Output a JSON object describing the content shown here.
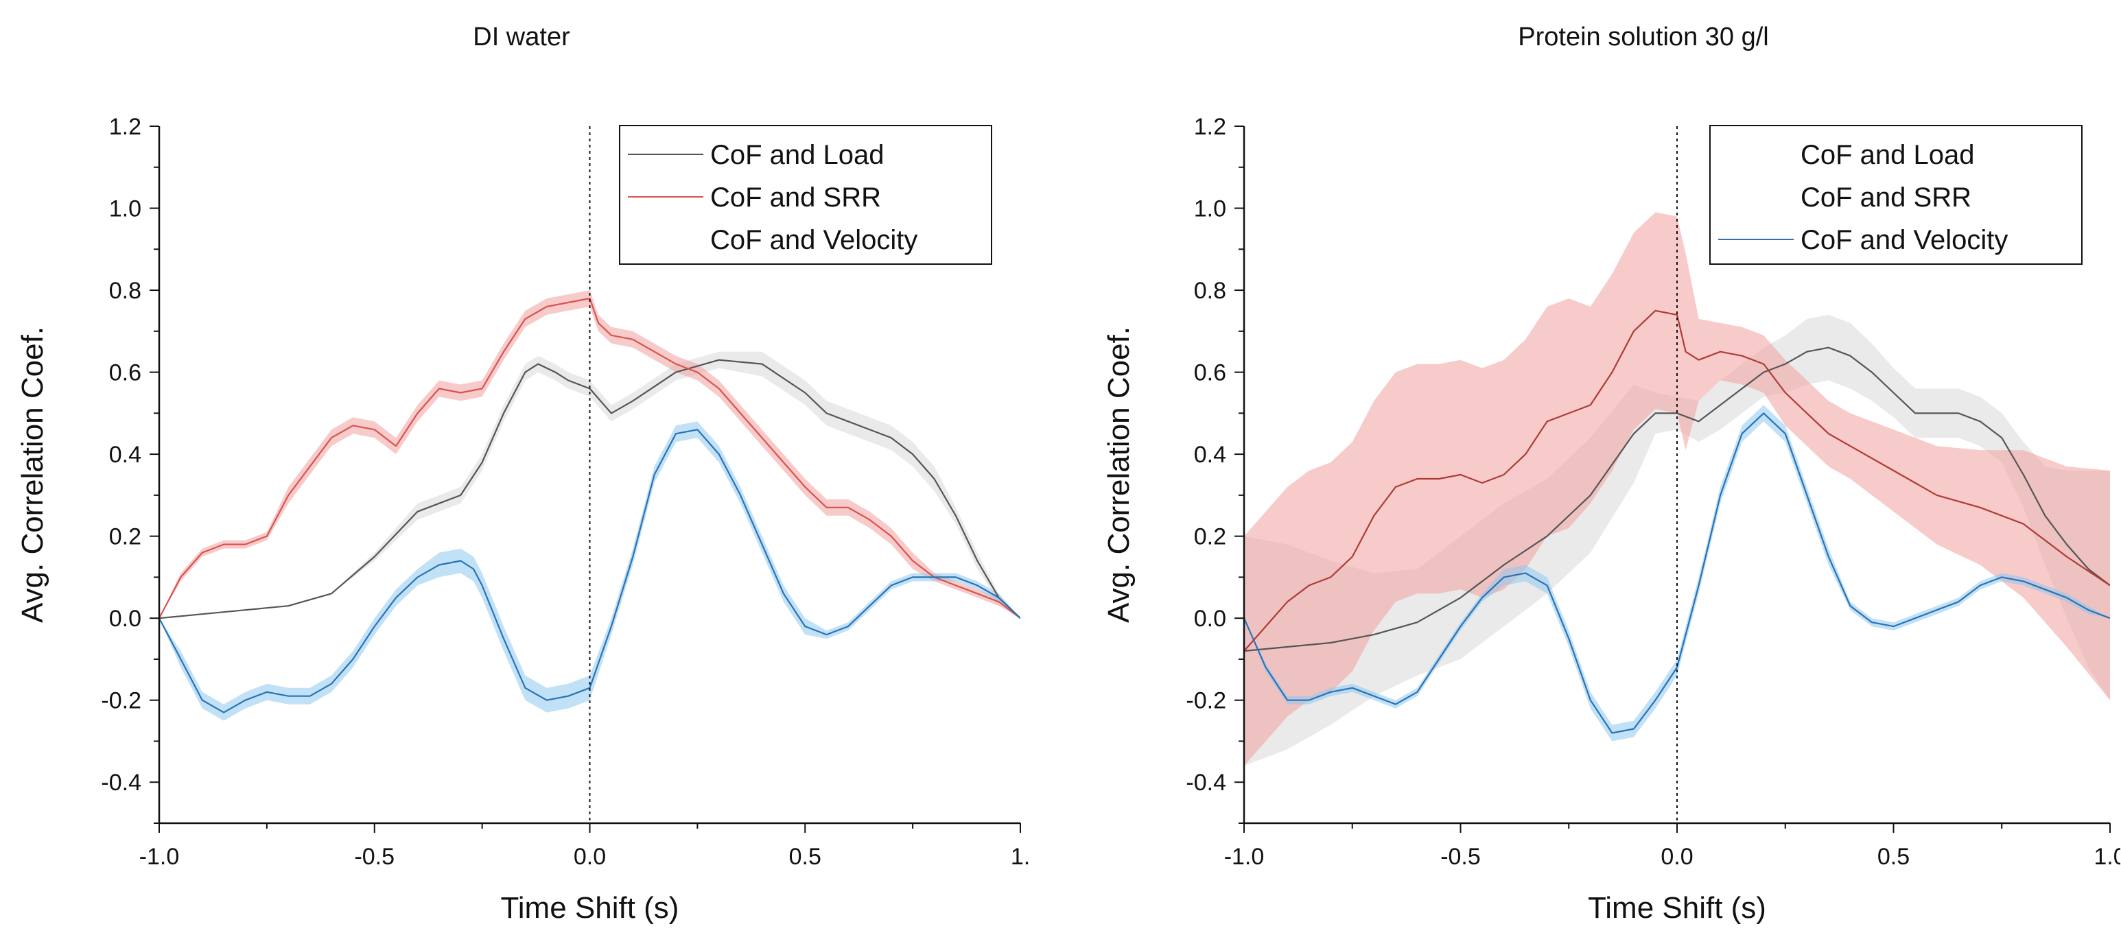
{
  "chart_data": [
    {
      "type": "line",
      "title": "DI water",
      "xlabel": "Time Shift (s)",
      "ylabel": "Avg. Correlation Coef.",
      "xlim": [
        -1.0,
        1.0
      ],
      "ylim": [
        -0.5,
        1.2
      ],
      "xticks": [
        -1.0,
        -0.5,
        0.0,
        0.5,
        1.0
      ],
      "xtick_labels": [
        "-1.0",
        "-0.5",
        "0.0",
        "0.5",
        "1."
      ],
      "yticks": [
        -0.4,
        -0.2,
        0.0,
        0.2,
        0.4,
        0.6,
        0.8,
        1.0,
        1.2
      ],
      "ytick_labels": [
        "-0.4",
        "-0.2",
        "0.0",
        "0.2",
        "0.4",
        "0.6",
        "0.8",
        "1.0",
        "1.2"
      ],
      "vline_x": 0.0,
      "legend_position": "top-right",
      "series": [
        {
          "name": "CoF and Load",
          "color": "#555555",
          "band_color": "#d8d8d8",
          "show_legend_line": true,
          "x": [
            -1.0,
            -0.9,
            -0.8,
            -0.7,
            -0.6,
            -0.5,
            -0.4,
            -0.35,
            -0.3,
            -0.25,
            -0.2,
            -0.15,
            -0.12,
            -0.08,
            -0.05,
            0.0,
            0.05,
            0.1,
            0.2,
            0.3,
            0.4,
            0.5,
            0.55,
            0.6,
            0.7,
            0.75,
            0.8,
            0.85,
            0.9,
            0.95,
            1.0
          ],
          "y": [
            0.0,
            0.01,
            0.02,
            0.03,
            0.06,
            0.15,
            0.26,
            0.28,
            0.3,
            0.38,
            0.5,
            0.6,
            0.62,
            0.6,
            0.58,
            0.56,
            0.5,
            0.53,
            0.6,
            0.63,
            0.62,
            0.55,
            0.5,
            0.48,
            0.44,
            0.4,
            0.34,
            0.25,
            0.14,
            0.05,
            0.0
          ],
          "band": [
            0.0,
            0.0,
            0.0,
            0.0,
            0.0,
            0.01,
            0.02,
            0.02,
            0.02,
            0.02,
            0.02,
            0.02,
            0.02,
            0.02,
            0.02,
            0.02,
            0.02,
            0.02,
            0.02,
            0.02,
            0.03,
            0.03,
            0.03,
            0.03,
            0.03,
            0.03,
            0.03,
            0.02,
            0.02,
            0.01,
            0.0
          ]
        },
        {
          "name": "CoF and SRR",
          "color": "#d9534f",
          "band_color": "#f2a0a0",
          "show_legend_line": true,
          "x": [
            -1.0,
            -0.95,
            -0.9,
            -0.85,
            -0.8,
            -0.75,
            -0.7,
            -0.6,
            -0.55,
            -0.5,
            -0.45,
            -0.4,
            -0.35,
            -0.3,
            -0.25,
            -0.2,
            -0.15,
            -0.1,
            -0.05,
            0.0,
            0.02,
            0.05,
            0.1,
            0.15,
            0.2,
            0.25,
            0.3,
            0.35,
            0.4,
            0.45,
            0.5,
            0.55,
            0.6,
            0.65,
            0.7,
            0.75,
            0.8,
            0.85,
            0.9,
            0.95,
            1.0
          ],
          "y": [
            0.0,
            0.1,
            0.16,
            0.18,
            0.18,
            0.2,
            0.3,
            0.44,
            0.47,
            0.46,
            0.42,
            0.5,
            0.56,
            0.55,
            0.56,
            0.65,
            0.73,
            0.76,
            0.77,
            0.78,
            0.72,
            0.69,
            0.68,
            0.65,
            0.62,
            0.6,
            0.56,
            0.5,
            0.44,
            0.38,
            0.32,
            0.27,
            0.27,
            0.24,
            0.2,
            0.14,
            0.1,
            0.08,
            0.06,
            0.04,
            0.0
          ],
          "band": [
            0.0,
            0.01,
            0.01,
            0.01,
            0.01,
            0.01,
            0.02,
            0.02,
            0.02,
            0.02,
            0.02,
            0.02,
            0.02,
            0.02,
            0.02,
            0.02,
            0.02,
            0.02,
            0.02,
            0.02,
            0.02,
            0.02,
            0.02,
            0.02,
            0.02,
            0.02,
            0.02,
            0.02,
            0.02,
            0.02,
            0.02,
            0.02,
            0.02,
            0.02,
            0.02,
            0.02,
            0.01,
            0.01,
            0.01,
            0.01,
            0.0
          ]
        },
        {
          "name": "CoF and Velocity",
          "color": "#2a72b5",
          "band_color": "#8ec9ee",
          "show_legend_line": false,
          "x": [
            -1.0,
            -0.95,
            -0.9,
            -0.85,
            -0.8,
            -0.75,
            -0.7,
            -0.65,
            -0.6,
            -0.55,
            -0.5,
            -0.45,
            -0.4,
            -0.35,
            -0.3,
            -0.27,
            -0.25,
            -0.2,
            -0.15,
            -0.1,
            -0.05,
            0.0,
            0.05,
            0.1,
            0.15,
            0.2,
            0.25,
            0.3,
            0.35,
            0.4,
            0.45,
            0.5,
            0.55,
            0.6,
            0.65,
            0.7,
            0.75,
            0.8,
            0.85,
            0.9,
            0.95,
            1.0
          ],
          "y": [
            0.0,
            -0.1,
            -0.2,
            -0.23,
            -0.2,
            -0.18,
            -0.19,
            -0.19,
            -0.16,
            -0.1,
            -0.02,
            0.05,
            0.1,
            0.13,
            0.14,
            0.12,
            0.08,
            -0.05,
            -0.17,
            -0.2,
            -0.19,
            -0.17,
            -0.02,
            0.15,
            0.35,
            0.45,
            0.46,
            0.4,
            0.3,
            0.18,
            0.06,
            -0.02,
            -0.04,
            -0.02,
            0.03,
            0.08,
            0.1,
            0.1,
            0.1,
            0.08,
            0.05,
            0.0
          ],
          "band": [
            0.0,
            0.02,
            0.02,
            0.02,
            0.02,
            0.02,
            0.02,
            0.02,
            0.02,
            0.02,
            0.02,
            0.02,
            0.02,
            0.03,
            0.03,
            0.03,
            0.03,
            0.03,
            0.03,
            0.03,
            0.03,
            0.03,
            0.02,
            0.02,
            0.02,
            0.02,
            0.02,
            0.02,
            0.02,
            0.02,
            0.02,
            0.02,
            0.01,
            0.01,
            0.01,
            0.01,
            0.01,
            0.01,
            0.01,
            0.01,
            0.01,
            0.0
          ]
        }
      ]
    },
    {
      "type": "line",
      "title": "Protein solution 30 g/l",
      "xlabel": "Time Shift (s)",
      "ylabel": "Avg. Correlation Coef.",
      "xlim": [
        -1.0,
        1.0
      ],
      "ylim": [
        -0.5,
        1.2
      ],
      "xticks": [
        -1.0,
        -0.5,
        0.0,
        0.5,
        1.0
      ],
      "xtick_labels": [
        "-1.0",
        "-0.5",
        "0.0",
        "0.5",
        "1.0"
      ],
      "yticks": [
        -0.4,
        -0.2,
        0.0,
        0.2,
        0.4,
        0.6,
        0.8,
        1.0,
        1.2
      ],
      "ytick_labels": [
        "-0.4",
        "-0.2",
        "0.0",
        "0.2",
        "0.4",
        "0.6",
        "0.8",
        "1.0",
        "1.2"
      ],
      "vline_x": 0.0,
      "legend_position": "top-right",
      "series": [
        {
          "name": "CoF and Load",
          "color": "#555555",
          "band_color": "#d8d8d8",
          "show_legend_line": false,
          "x": [
            -1.0,
            -0.9,
            -0.8,
            -0.7,
            -0.6,
            -0.5,
            -0.4,
            -0.3,
            -0.2,
            -0.1,
            -0.05,
            0.0,
            0.05,
            0.1,
            0.15,
            0.2,
            0.25,
            0.3,
            0.35,
            0.4,
            0.45,
            0.5,
            0.55,
            0.6,
            0.65,
            0.7,
            0.75,
            0.8,
            0.85,
            0.9,
            0.95,
            1.0
          ],
          "y": [
            -0.08,
            -0.07,
            -0.06,
            -0.04,
            -0.01,
            0.05,
            0.13,
            0.2,
            0.3,
            0.45,
            0.5,
            0.5,
            0.48,
            0.52,
            0.56,
            0.6,
            0.62,
            0.65,
            0.66,
            0.64,
            0.6,
            0.55,
            0.5,
            0.5,
            0.5,
            0.48,
            0.44,
            0.35,
            0.25,
            0.18,
            0.12,
            0.08
          ],
          "band": [
            0.28,
            0.25,
            0.2,
            0.15,
            0.13,
            0.15,
            0.15,
            0.14,
            0.14,
            0.12,
            0.05,
            0.04,
            0.05,
            0.06,
            0.06,
            0.06,
            0.07,
            0.08,
            0.08,
            0.08,
            0.07,
            0.06,
            0.06,
            0.06,
            0.06,
            0.06,
            0.06,
            0.08,
            0.12,
            0.18,
            0.24,
            0.28
          ]
        },
        {
          "name": "CoF and SRR",
          "color": "#b03a35",
          "band_color": "#f2a0a0",
          "show_legend_line": false,
          "x": [
            -1.0,
            -0.95,
            -0.9,
            -0.85,
            -0.8,
            -0.75,
            -0.7,
            -0.65,
            -0.6,
            -0.55,
            -0.5,
            -0.45,
            -0.4,
            -0.35,
            -0.3,
            -0.25,
            -0.2,
            -0.15,
            -0.1,
            -0.05,
            0.0,
            0.02,
            0.05,
            0.1,
            0.15,
            0.2,
            0.25,
            0.3,
            0.35,
            0.4,
            0.5,
            0.6,
            0.7,
            0.8,
            0.9,
            1.0
          ],
          "y": [
            -0.08,
            -0.02,
            0.04,
            0.08,
            0.1,
            0.15,
            0.25,
            0.32,
            0.34,
            0.34,
            0.35,
            0.33,
            0.35,
            0.4,
            0.48,
            0.5,
            0.52,
            0.6,
            0.7,
            0.75,
            0.74,
            0.65,
            0.63,
            0.65,
            0.64,
            0.62,
            0.55,
            0.5,
            0.45,
            0.42,
            0.36,
            0.3,
            0.27,
            0.23,
            0.15,
            0.08
          ],
          "band": [
            0.28,
            0.28,
            0.28,
            0.28,
            0.28,
            0.28,
            0.28,
            0.28,
            0.28,
            0.28,
            0.28,
            0.28,
            0.28,
            0.28,
            0.28,
            0.28,
            0.24,
            0.24,
            0.24,
            0.24,
            0.24,
            0.24,
            0.1,
            0.07,
            0.07,
            0.07,
            0.08,
            0.08,
            0.08,
            0.08,
            0.1,
            0.12,
            0.14,
            0.18,
            0.22,
            0.28
          ]
        },
        {
          "name": "CoF and Velocity",
          "color": "#2a72b5",
          "band_color": "#8ec9ee",
          "show_legend_line": true,
          "x": [
            -1.0,
            -0.95,
            -0.9,
            -0.85,
            -0.8,
            -0.75,
            -0.7,
            -0.65,
            -0.6,
            -0.55,
            -0.5,
            -0.45,
            -0.4,
            -0.35,
            -0.3,
            -0.25,
            -0.2,
            -0.15,
            -0.1,
            -0.05,
            0.0,
            0.05,
            0.1,
            0.15,
            0.2,
            0.25,
            0.3,
            0.35,
            0.4,
            0.45,
            0.5,
            0.55,
            0.6,
            0.65,
            0.7,
            0.75,
            0.8,
            0.85,
            0.9,
            0.95,
            1.0
          ],
          "y": [
            0.0,
            -0.12,
            -0.2,
            -0.2,
            -0.18,
            -0.17,
            -0.19,
            -0.21,
            -0.18,
            -0.1,
            -0.02,
            0.05,
            0.1,
            0.11,
            0.08,
            -0.05,
            -0.2,
            -0.28,
            -0.27,
            -0.2,
            -0.12,
            0.08,
            0.3,
            0.45,
            0.5,
            0.45,
            0.3,
            0.15,
            0.03,
            -0.01,
            -0.02,
            0.0,
            0.02,
            0.04,
            0.08,
            0.1,
            0.09,
            0.07,
            0.05,
            0.02,
            0.0
          ],
          "band": [
            0.0,
            0.01,
            0.01,
            0.01,
            0.01,
            0.01,
            0.01,
            0.01,
            0.01,
            0.01,
            0.01,
            0.01,
            0.02,
            0.02,
            0.02,
            0.02,
            0.02,
            0.02,
            0.02,
            0.02,
            0.02,
            0.02,
            0.02,
            0.02,
            0.02,
            0.02,
            0.02,
            0.02,
            0.01,
            0.01,
            0.01,
            0.01,
            0.01,
            0.01,
            0.01,
            0.01,
            0.01,
            0.01,
            0.01,
            0.01,
            0.0
          ]
        }
      ]
    }
  ]
}
